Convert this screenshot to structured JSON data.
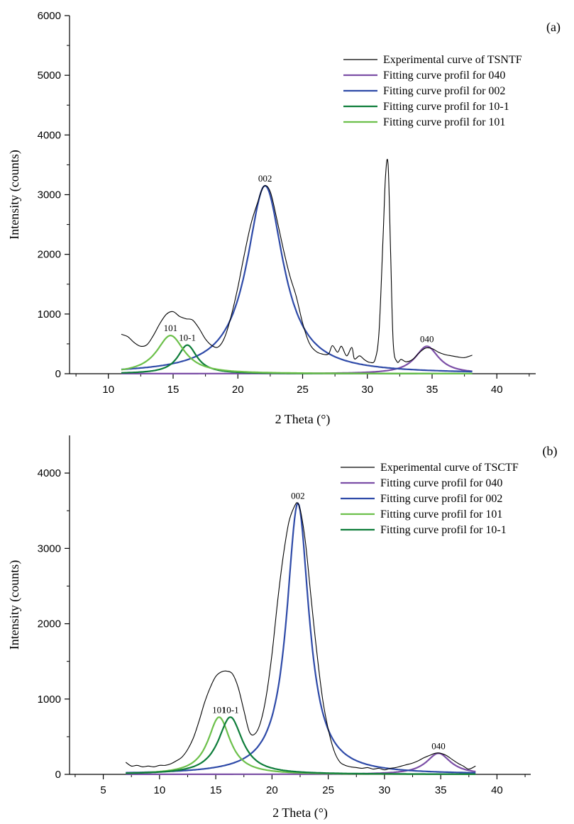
{
  "chart_data": [
    {
      "type": "line",
      "panel_label": "(a)",
      "xlabel": "2 Theta (°)",
      "ylabel": "Intensity (counts)",
      "xlim": [
        7,
        43
      ],
      "ylim": [
        0,
        6000
      ],
      "xticks": [
        10,
        15,
        20,
        25,
        30,
        35,
        40
      ],
      "yticks": [
        0,
        1000,
        2000,
        3000,
        4000,
        5000,
        6000
      ],
      "grid": false,
      "legend_position": "top-right",
      "annotations": [
        {
          "text": "002",
          "x": 22.1,
          "y": 3150
        },
        {
          "text": "101",
          "x": 14.8,
          "y": 640
        },
        {
          "text": "10-1",
          "x": 16.1,
          "y": 480
        },
        {
          "text": "040",
          "x": 34.6,
          "y": 460
        }
      ],
      "series": [
        {
          "name": "Experimental curve of TSNTF",
          "color": "#000000",
          "width": 1.1,
          "x": [
            11,
            11.5,
            12,
            12.5,
            13,
            13.5,
            14,
            14.5,
            15,
            15.5,
            16,
            16.5,
            17,
            17.5,
            18,
            18.5,
            19,
            19.5,
            20,
            20.5,
            21,
            21.5,
            22,
            22.5,
            23,
            23.5,
            24,
            24.5,
            25,
            25.5,
            26,
            26.5,
            27,
            27.3,
            27.7,
            28,
            28.4,
            28.8,
            29,
            29.4,
            29.8,
            30.2,
            30.6,
            30.9,
            31.2,
            31.4,
            31.6,
            31.8,
            32,
            32.3,
            32.6,
            33,
            33.5,
            34,
            34.5,
            35,
            35.5,
            36,
            36.5,
            37,
            37.5,
            38.1
          ],
          "y": [
            660,
            620,
            520,
            460,
            490,
            650,
            850,
            1000,
            1040,
            960,
            920,
            900,
            760,
            580,
            470,
            450,
            620,
            980,
            1450,
            2000,
            2500,
            2850,
            3140,
            3050,
            2600,
            2100,
            1650,
            1300,
            850,
            520,
            380,
            330,
            330,
            470,
            360,
            460,
            300,
            440,
            250,
            300,
            230,
            190,
            240,
            700,
            2200,
            3300,
            3500,
            2000,
            500,
            200,
            240,
            200,
            240,
            350,
            430,
            420,
            360,
            320,
            300,
            280,
            270,
            310
          ]
        },
        {
          "name": "Fitting curve profil for 040",
          "color": "#7b4ea6",
          "width": 2.2,
          "fit": {
            "x0": 34.6,
            "A": 460,
            "g": 1.1,
            "xmin": 11,
            "xmax": 38.1
          }
        },
        {
          "name": "Fitting curve profil for 002",
          "color": "#2e4aa8",
          "width": 2.2,
          "fit": {
            "x0": 22.1,
            "A": 3150,
            "g": 1.7,
            "xmin": 11,
            "xmax": 38.1
          }
        },
        {
          "name": "Fitting curve profil for 10-1",
          "color": "#0e7d3a",
          "width": 2.2,
          "fit": {
            "x0": 16.1,
            "A": 480,
            "g": 0.9,
            "xmin": 11,
            "xmax": 38.1
          }
        },
        {
          "name": "Fitting curve profil for 101",
          "color": "#6cc04a",
          "width": 2.2,
          "fit": {
            "x0": 14.8,
            "A": 640,
            "g": 1.3,
            "xmin": 11,
            "xmax": 38.1
          }
        }
      ]
    },
    {
      "type": "line",
      "panel_label": "(b)",
      "xlabel": "2 Theta (°)",
      "ylabel": "Intensity (counts)",
      "xlim": [
        2,
        43
      ],
      "ylim": [
        0,
        4500
      ],
      "xticks": [
        5,
        10,
        15,
        20,
        25,
        30,
        35,
        40
      ],
      "yticks": [
        0,
        1000,
        2000,
        3000,
        4000
      ],
      "grid": false,
      "legend_position": "top-right",
      "annotations": [
        {
          "text": "002",
          "x": 22.3,
          "y": 3600
        },
        {
          "text": "101",
          "x": 15.3,
          "y": 760
        },
        {
          "text": "10-1",
          "x": 16.3,
          "y": 760
        },
        {
          "text": "040",
          "x": 34.8,
          "y": 280
        }
      ],
      "series": [
        {
          "name": "Experimental curve of TSCTF",
          "color": "#000000",
          "width": 1.1,
          "x": [
            7,
            7.5,
            8,
            8.5,
            9,
            9.5,
            10,
            10.5,
            11,
            11.5,
            12,
            12.5,
            13,
            13.5,
            14,
            14.5,
            15,
            15.5,
            16,
            16.5,
            17,
            17.5,
            18,
            18.5,
            19,
            19.5,
            20,
            20.5,
            21,
            21.5,
            22,
            22.3,
            22.6,
            23,
            23.5,
            24,
            24.5,
            25,
            25.5,
            26,
            26.5,
            27,
            27.5,
            28,
            28.5,
            29,
            29.5,
            30,
            30.5,
            31,
            31.5,
            32,
            32.5,
            33,
            33.5,
            34,
            34.5,
            35,
            35.5,
            36,
            36.5,
            37,
            37.5,
            38.1
          ],
          "y": [
            160,
            110,
            120,
            100,
            110,
            100,
            120,
            120,
            140,
            180,
            230,
            330,
            480,
            700,
            950,
            1150,
            1300,
            1360,
            1370,
            1330,
            1150,
            850,
            560,
            540,
            700,
            1050,
            1600,
            2300,
            2900,
            3350,
            3560,
            3600,
            3450,
            3050,
            2300,
            1600,
            1000,
            600,
            320,
            170,
            120,
            100,
            90,
            80,
            90,
            70,
            80,
            60,
            80,
            90,
            110,
            130,
            150,
            180,
            220,
            250,
            280,
            280,
            250,
            200,
            150,
            110,
            70,
            110
          ]
        },
        {
          "name": "Fitting curve profil for 040",
          "color": "#7b4ea6",
          "width": 2.2,
          "fit": {
            "x0": 34.8,
            "A": 280,
            "g": 1.3,
            "xmin": 7,
            "xmax": 38.1
          }
        },
        {
          "name": "Fitting curve profil for 002",
          "color": "#2e4aa8",
          "width": 2.2,
          "fit": {
            "x0": 22.3,
            "A": 3600,
            "g": 1.2,
            "xmin": 7,
            "xmax": 38.1
          }
        },
        {
          "name": "Fitting curve profil for 101",
          "color": "#6cc04a",
          "width": 2.2,
          "fit": {
            "x0": 15.3,
            "A": 760,
            "g": 1.2,
            "xmin": 7,
            "xmax": 38.1
          }
        },
        {
          "name": "Fitting curve profil for 10-1",
          "color": "#0e7d3a",
          "width": 2.2,
          "fit": {
            "x0": 16.3,
            "A": 760,
            "g": 1.3,
            "xmin": 7,
            "xmax": 38.1
          }
        }
      ]
    }
  ]
}
